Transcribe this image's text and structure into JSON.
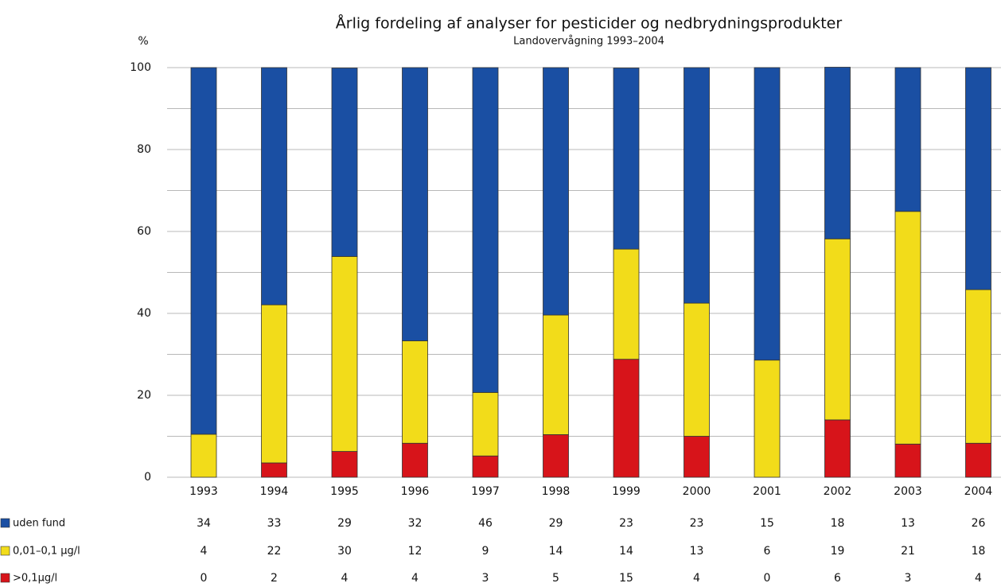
{
  "chart_data": {
    "type": "bar",
    "stacked": true,
    "title": "Årlig fordeling af analyser for pesticider og nedbrydningsprodukter",
    "subtitle": "Landovervågning 1993–2004",
    "y_label": "%",
    "categories": [
      "1993",
      "1994",
      "1995",
      "1996",
      "1997",
      "1998",
      "1999",
      "2000",
      "2001",
      "2002",
      "2003",
      "2004"
    ],
    "series": [
      {
        "name": "uden fund",
        "color": "#1a4fa3",
        "values": [
          89.5,
          57.9,
          46.0,
          66.7,
          79.3,
          60.4,
          44.2,
          57.5,
          71.4,
          41.9,
          35.1,
          54.2
        ],
        "counts": [
          34,
          33,
          29,
          32,
          46,
          29,
          23,
          23,
          15,
          18,
          13,
          26
        ]
      },
      {
        "name": "0,01–0,1 µg/l",
        "color": "#f2dc1a",
        "values": [
          10.5,
          38.6,
          47.6,
          25.0,
          15.5,
          29.2,
          26.9,
          32.5,
          28.6,
          44.2,
          56.8,
          37.5
        ],
        "counts": [
          4,
          22,
          30,
          12,
          9,
          14,
          14,
          13,
          6,
          19,
          21,
          18
        ]
      },
      {
        "name": ">0,1µg/l",
        "color": "#d7141a",
        "values": [
          0,
          3.5,
          6.3,
          8.3,
          5.2,
          10.4,
          28.8,
          10.0,
          0,
          14.0,
          8.1,
          8.3
        ],
        "counts": [
          0,
          2,
          4,
          4,
          3,
          5,
          15,
          4,
          0,
          6,
          3,
          4
        ]
      }
    ],
    "ylim": [
      0,
      100
    ],
    "yticks": [
      0,
      20,
      40,
      60,
      80,
      100
    ],
    "yticks_minor": [
      10,
      30,
      50,
      70,
      90
    ],
    "grid": true
  }
}
